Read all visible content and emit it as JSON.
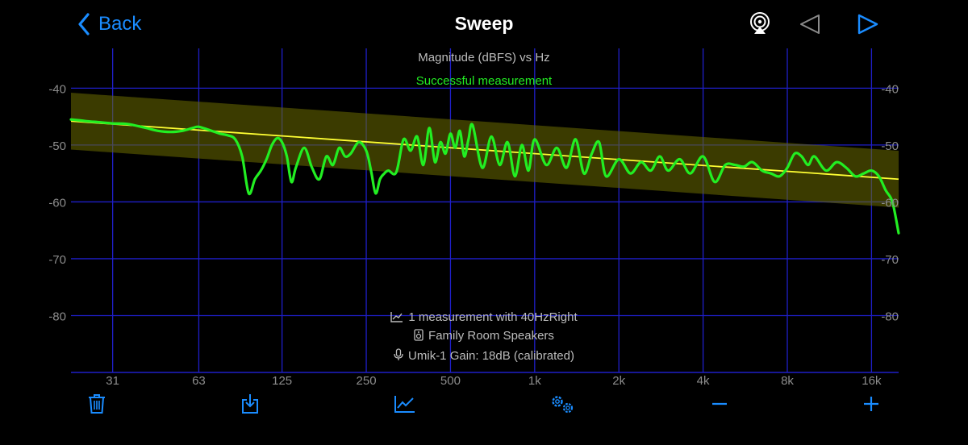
{
  "nav": {
    "back_label": "Back",
    "title": "Sweep"
  },
  "chart_data": {
    "type": "line",
    "title": "Magnitude (dBFS) vs Hz",
    "status": "Successful measurement",
    "xscale": "log",
    "xlim": [
      22,
      20000
    ],
    "ylim": [
      -90,
      -33
    ],
    "grid": true,
    "yticks": [
      -40,
      -50,
      -60,
      -70,
      -80
    ],
    "ytick_labels": [
      "-40",
      "-50",
      "-60",
      "-70",
      "-80"
    ],
    "xticks": [
      31,
      63,
      125,
      250,
      500,
      1000,
      2000,
      4000,
      8000,
      16000
    ],
    "xtick_labels": [
      "31",
      "63",
      "125",
      "250",
      "500",
      "1k",
      "2k",
      "4k",
      "8k",
      "16k"
    ],
    "target": {
      "x": [
        22,
        20000
      ],
      "y": [
        -45.8,
        -56.0
      ],
      "band_width_db": 5,
      "color": "#ffff33"
    },
    "series": [
      {
        "color": "#22ee22",
        "x": [
          22,
          25,
          28,
          31,
          35,
          40,
          45,
          50,
          55,
          60,
          63,
          70,
          75,
          80,
          85,
          90,
          95,
          100,
          105,
          110,
          115,
          120,
          125,
          130,
          135,
          140,
          150,
          160,
          170,
          180,
          190,
          200,
          210,
          220,
          235,
          250,
          260,
          270,
          280,
          290,
          300,
          320,
          340,
          360,
          380,
          400,
          420,
          440,
          460,
          480,
          500,
          520,
          540,
          560,
          580,
          600,
          650,
          700,
          750,
          800,
          850,
          900,
          950,
          1000,
          1100,
          1200,
          1300,
          1400,
          1500,
          1600,
          1700,
          1800,
          2000,
          2200,
          2400,
          2600,
          2800,
          3000,
          3300,
          3600,
          4000,
          4400,
          4800,
          5200,
          5600,
          6000,
          6500,
          7000,
          7500,
          8000,
          8500,
          9000,
          9500,
          10000,
          11000,
          12000,
          13000,
          14000,
          15000,
          16000,
          17000,
          18000,
          19000,
          20000
        ],
        "y": [
          -45.5,
          -45.8,
          -46.0,
          -46.2,
          -46.3,
          -46.9,
          -47.5,
          -47.7,
          -47.5,
          -47.0,
          -46.8,
          -47.5,
          -48.0,
          -48.3,
          -49.0,
          -52.0,
          -58.5,
          -56.0,
          -54.5,
          -52.5,
          -50.0,
          -48.8,
          -49.5,
          -52.0,
          -56.5,
          -54.0,
          -50.5,
          -54.0,
          -56.0,
          -52.0,
          -53.5,
          -50.5,
          -52.0,
          -51.5,
          -49.5,
          -51.0,
          -54.5,
          -58.5,
          -56.0,
          -55.0,
          -54.5,
          -54.8,
          -49.0,
          -51.0,
          -48.5,
          -53.5,
          -47.0,
          -53.0,
          -49.5,
          -51.5,
          -48.0,
          -50.5,
          -47.5,
          -52.0,
          -49.0,
          -46.5,
          -54.0,
          -48.5,
          -53.5,
          -49.5,
          -55.5,
          -50.0,
          -54.5,
          -49.0,
          -53.5,
          -50.5,
          -54.0,
          -49.0,
          -55.0,
          -51.5,
          -49.5,
          -55.5,
          -52.5,
          -55.0,
          -53.0,
          -54.5,
          -52.0,
          -54.5,
          -52.5,
          -55.0,
          -52.0,
          -56.5,
          -53.5,
          -53.5,
          -53.8,
          -53.0,
          -54.5,
          -55.0,
          -55.5,
          -54.0,
          -51.5,
          -52.0,
          -53.5,
          -52.0,
          -54.5,
          -53.0,
          -54.0,
          -55.5,
          -55.0,
          -54.5,
          -55.5,
          -58.0,
          -60.0,
          -65.5
        ]
      }
    ]
  },
  "info": {
    "line1": "1 measurement with 40HzRight",
    "line2": "Family Room Speakers",
    "line3": "Umik-1  Gain: 18dB (calibrated)"
  }
}
